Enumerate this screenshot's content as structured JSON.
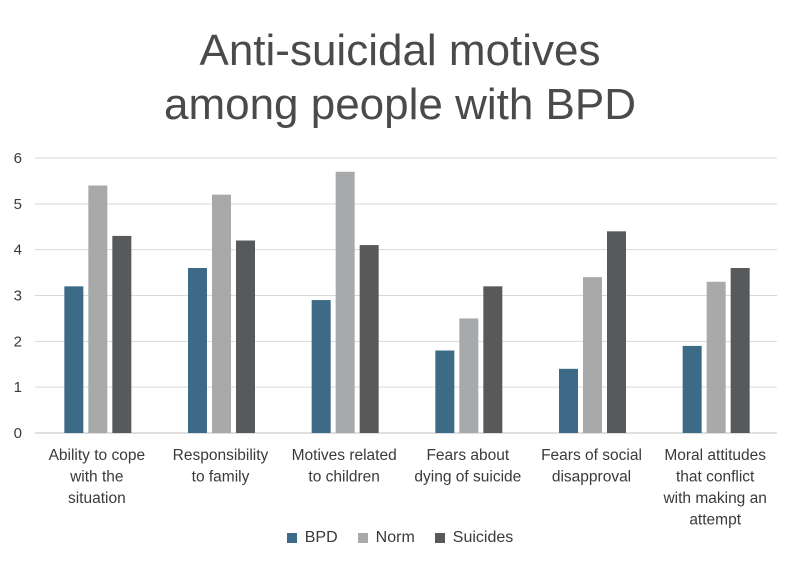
{
  "chart_data": {
    "type": "bar",
    "title_lines": [
      "Anti-suicidal motives",
      "among people with BPD"
    ],
    "categories": [
      [
        "Ability to cope",
        "with the",
        "situation"
      ],
      [
        "Responsibility",
        "to family"
      ],
      [
        "Motives related",
        "to children"
      ],
      [
        "Fears about",
        "dying of suicide"
      ],
      [
        "Fears of social",
        "disapproval"
      ],
      [
        "Moral attitudes",
        "that conflict",
        "with making an",
        "attempt"
      ]
    ],
    "series": [
      {
        "name": "BPD",
        "color": "#3d6a87",
        "values": [
          3.2,
          3.6,
          2.9,
          1.8,
          1.4,
          1.9
        ]
      },
      {
        "name": "Norm",
        "color": "#a7a9ab",
        "values": [
          5.4,
          5.2,
          5.7,
          2.5,
          3.4,
          3.3
        ]
      },
      {
        "name": "Suicides",
        "color": "#58595b",
        "values": [
          4.3,
          4.2,
          4.1,
          3.2,
          4.4,
          3.6
        ]
      }
    ],
    "ylim": [
      0,
      6
    ],
    "yticks": [
      0,
      1,
      2,
      3,
      4,
      5,
      6
    ],
    "grid": true,
    "legend": "bottom"
  }
}
